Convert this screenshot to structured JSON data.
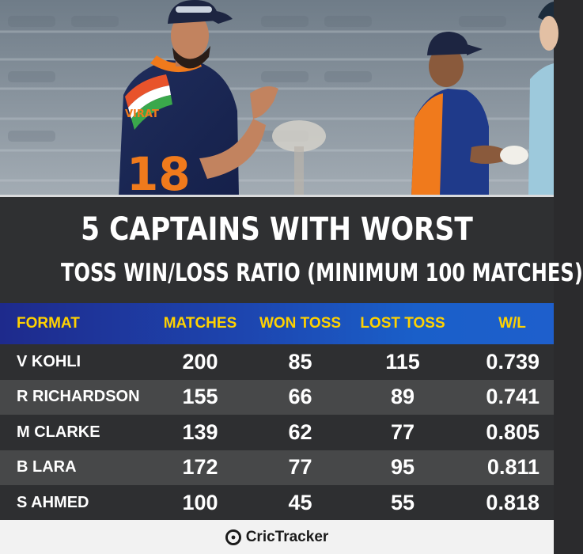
{
  "title": {
    "line1": "5 CAPTAINS WITH WORST",
    "line2": "TOSS WIN/LOSS RATIO (MINIMUM 100 MATCHES)"
  },
  "table": {
    "headers": [
      "FORMAT",
      "MATCHES",
      "WON TOSS",
      "LOST TOSS",
      "W/L"
    ],
    "rows": [
      {
        "name": "V KOHLI",
        "matches": "200",
        "won": "85",
        "lost": "115",
        "wl": "0.739"
      },
      {
        "name": "R RICHARDSON",
        "matches": "155",
        "won": "66",
        "lost": "89",
        "wl": "0.741"
      },
      {
        "name": "M CLARKE",
        "matches": "139",
        "won": "62",
        "lost": "77",
        "wl": "0.805"
      },
      {
        "name": "B LARA",
        "matches": "172",
        "won": "77",
        "lost": "95",
        "wl": "0.811"
      },
      {
        "name": "S AHMED",
        "matches": "100",
        "won": "45",
        "lost": "55",
        "wl": "0.818"
      }
    ]
  },
  "photo": {
    "jersey_text": "VIRAT",
    "jersey_number": "18"
  },
  "footer": {
    "brand": "CricTracker",
    "logo_icon": "crictracker-logo-icon"
  },
  "colors": {
    "header_text": "#ffd200",
    "header_bg_start": "#1e2a8c",
    "header_bg_end": "#1e5fcc",
    "row_dark": "#2e2f31",
    "row_light": "#474849"
  }
}
